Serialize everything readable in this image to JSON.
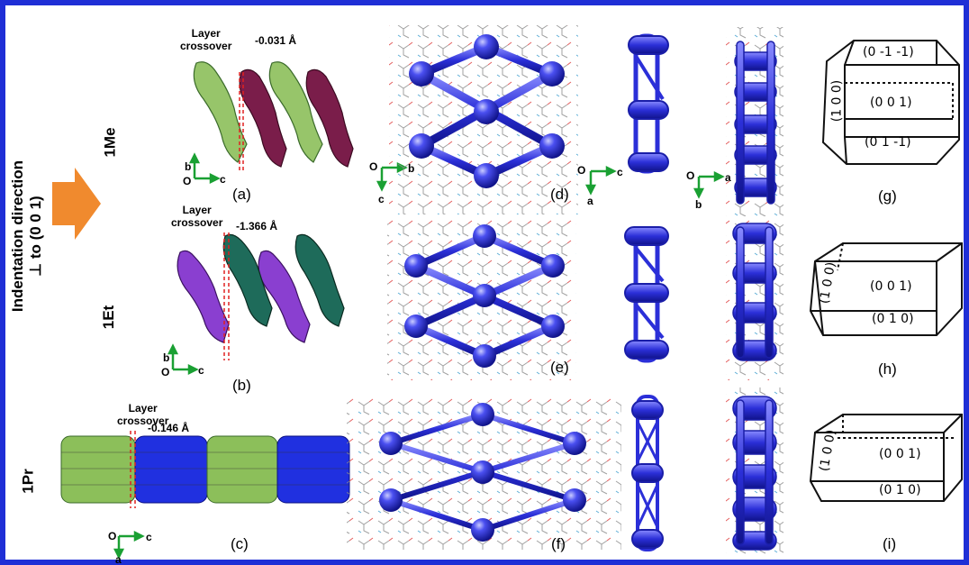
{
  "figure": {
    "direction_label_line1": "Indentation direction",
    "direction_label_line2": "⊥ to (0 0 1)",
    "colors": {
      "frame": "#1f2fd6",
      "arrow": "#f08a2e",
      "sphere": "#2b2fd8",
      "green_layer": "#8cbf5a",
      "maroon_layer": "#7a1d4a",
      "purple_layer": "#8a3fd0",
      "teal_layer": "#1e6b5a",
      "blue_layer": "#2030e0",
      "axis": "#1aa033",
      "crossover_line": "#e02020"
    }
  },
  "rows": [
    {
      "name": "1Me",
      "crossover_label": "Layer\ncrossover",
      "crossover_value": "-0.031 Å",
      "axes_a": {
        "origin": "O",
        "up": "b",
        "right": "c"
      },
      "panel_a": "(a)",
      "panel_d": "(d)",
      "panel_g": "(g)",
      "axes_d": {
        "origin": "O",
        "right": "b",
        "down": "c"
      },
      "axes_e1": {
        "origin": "O",
        "right": "c",
        "down": "a"
      },
      "axes_e2": {
        "origin": "O",
        "right": "a",
        "down": "b"
      },
      "faces": [
        "(0 -1 -1)",
        "(0 0 1)",
        "(0 1 -1)",
        "(1 0 0)"
      ]
    },
    {
      "name": "1Et",
      "crossover_label": "Layer\ncrossover",
      "crossover_value": "-1.366 Å",
      "axes_a": {
        "origin": "O",
        "up": "b",
        "right": "c"
      },
      "panel_a": "(b)",
      "panel_d": "(e)",
      "panel_g": "(h)",
      "faces": [
        "(0 0 1)",
        "(0 1 0)",
        "(1 0 0)"
      ]
    },
    {
      "name": "1Pr",
      "crossover_label": "Layer\ncrossover",
      "crossover_value": "-0.146 Å",
      "axes_a": {
        "origin": "O",
        "down": "a",
        "right": "c"
      },
      "panel_a": "(c)",
      "panel_d": "(f)",
      "panel_g": "(i)",
      "faces": [
        "(0 0 1)",
        "(0 1 0)",
        "(1 0 0)"
      ]
    }
  ]
}
